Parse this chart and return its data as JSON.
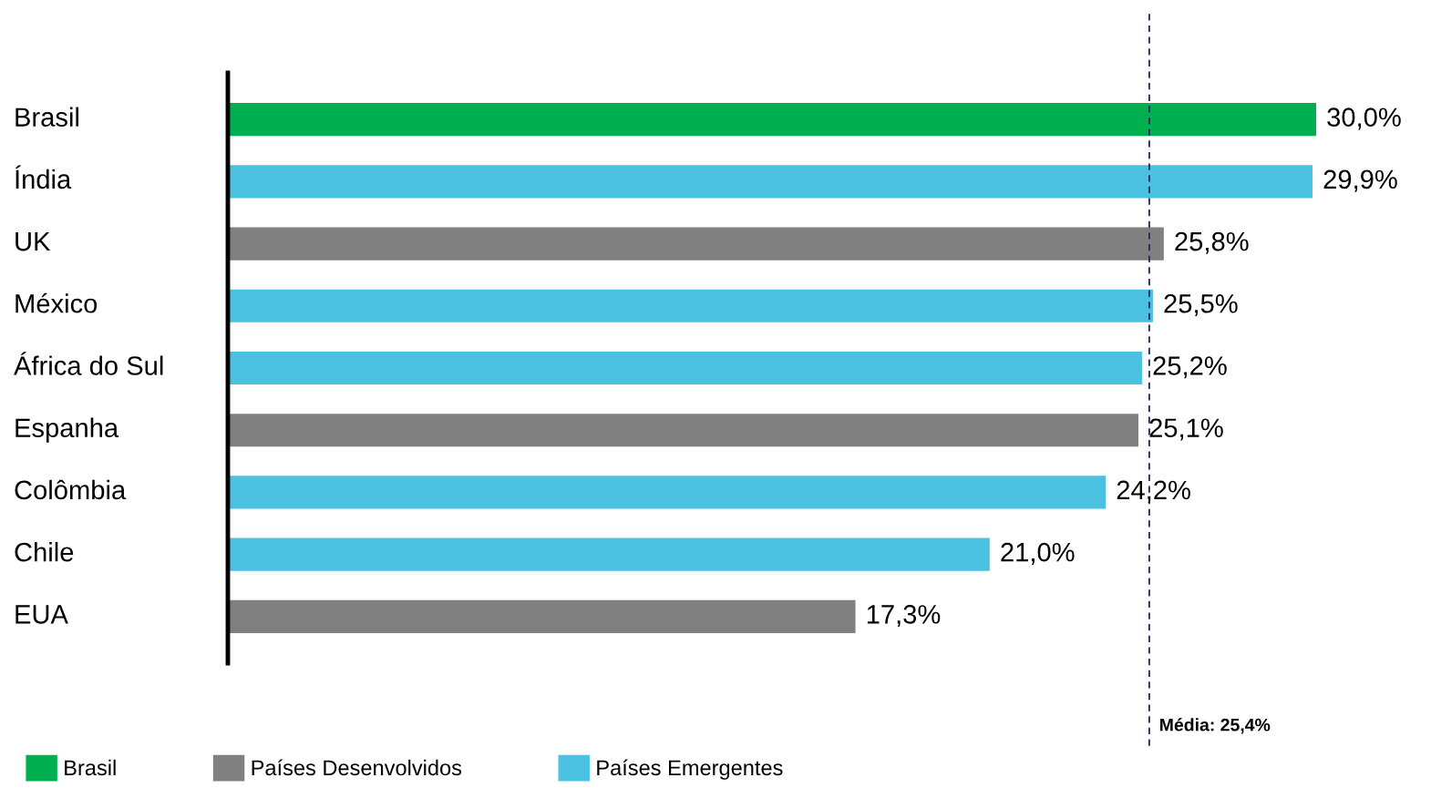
{
  "chart_data": {
    "type": "bar",
    "orientation": "horizontal",
    "tick_labels": "y",
    "legend": "bottom left",
    "categories": [
      "Brasil",
      "Índia",
      "UK",
      "México",
      "África do Sul",
      "Espanha",
      "Colômbia",
      "Chile",
      "EUA"
    ],
    "series": [
      {
        "name": "Brasil",
        "color": "#00b050",
        "values": [
          30.0,
          null,
          null,
          null,
          null,
          null,
          null,
          null,
          null
        ],
        "value_labels": [
          "30,0%",
          null,
          null,
          null,
          null,
          null,
          null,
          null,
          null
        ]
      },
      {
        "name": "Países Desenvolvidos",
        "color": "#808080",
        "values": [
          null,
          null,
          25.8,
          null,
          null,
          25.1,
          null,
          null,
          17.3
        ],
        "value_labels": [
          null,
          null,
          "25,8%",
          null,
          null,
          "25,1%",
          null,
          null,
          "17,3%"
        ]
      },
      {
        "name": "Países Emergentes",
        "color": "#4bc1e1",
        "values": [
          null,
          29.9,
          null,
          25.5,
          25.2,
          null,
          24.2,
          21.0,
          null
        ],
        "value_labels": [
          null,
          "29,9%",
          null,
          "25,5%",
          "25,2%",
          null,
          "24,2%",
          "21,0%",
          null
        ]
      }
    ],
    "ref_lines": [
      {
        "axis": "x",
        "value": 25.4,
        "label": "Média: 25,4%",
        "color": "#1f2a5c",
        "line_style": "dashed"
      }
    ]
  }
}
